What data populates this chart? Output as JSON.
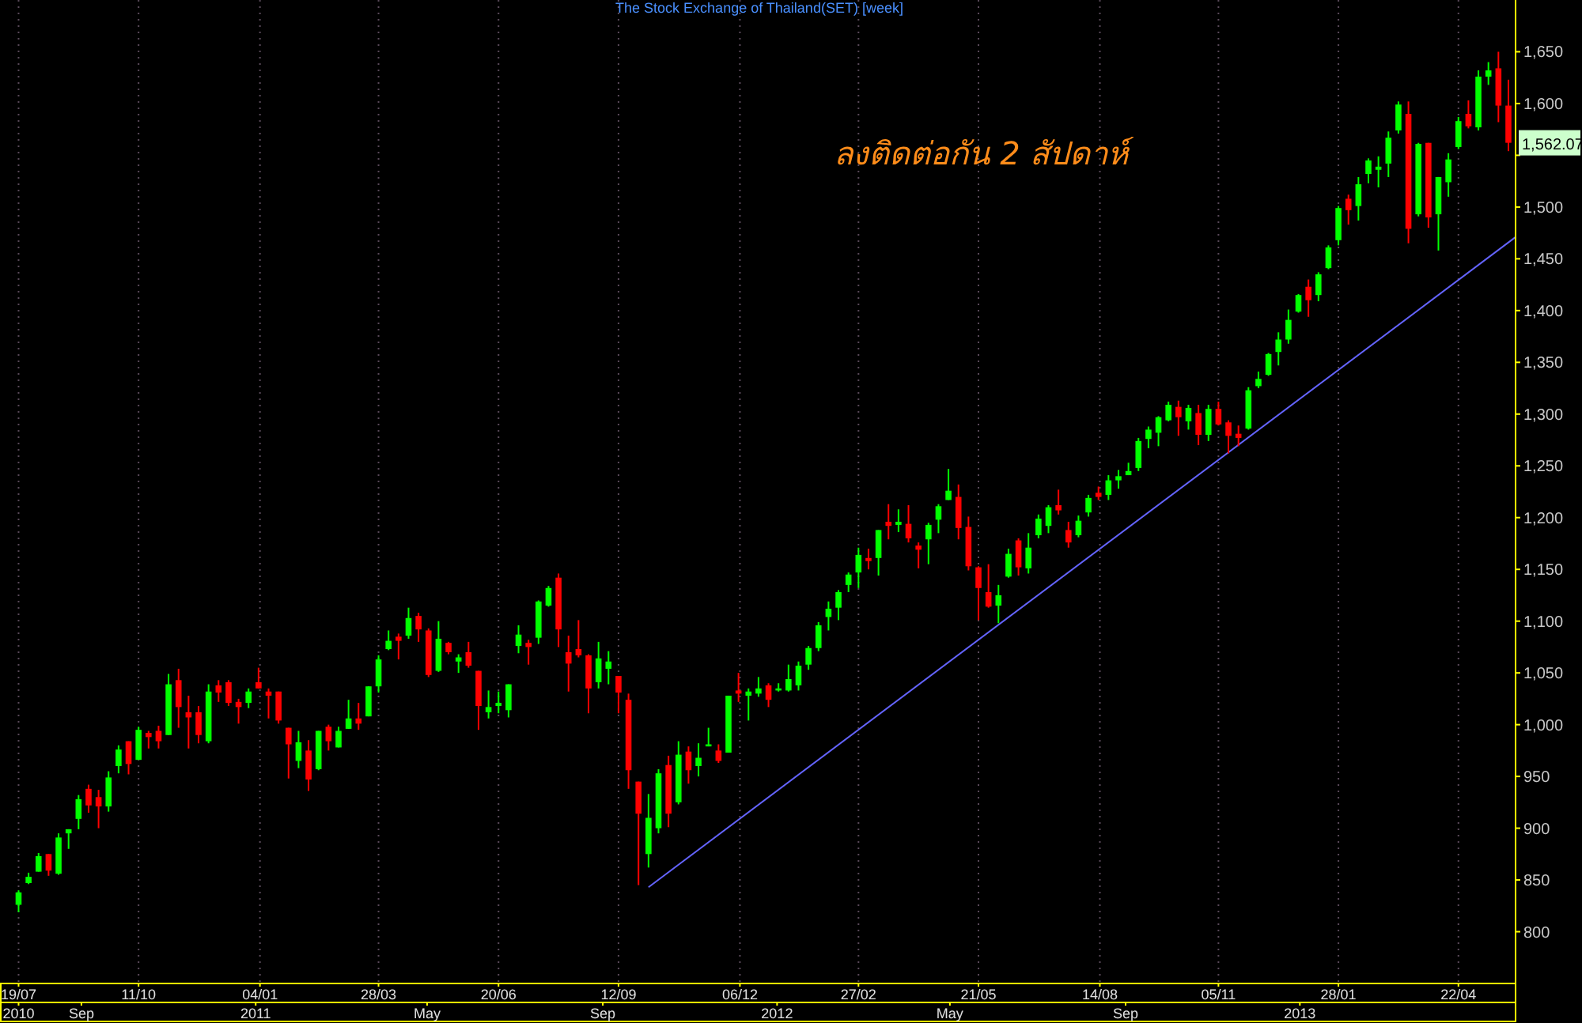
{
  "chart_data": {
    "type": "candlestick",
    "title": "The Stock Exchange of Thailand(SET) [week]",
    "x": [
      "2010-07-19",
      "2010-07-26",
      "2010-08-02",
      "2010-08-09",
      "2010-08-16",
      "2010-08-23",
      "2010-08-30",
      "2010-09-06",
      "2010-09-13",
      "2010-09-20",
      "2010-09-27",
      "2010-10-04",
      "2010-10-11",
      "2010-10-18",
      "2010-10-25",
      "2010-11-01",
      "2010-11-08",
      "2010-11-15",
      "2010-11-22",
      "2010-11-29",
      "2010-12-06",
      "2010-12-13",
      "2010-12-20",
      "2010-12-27",
      "2011-01-03",
      "2011-01-10",
      "2011-01-17",
      "2011-01-24",
      "2011-01-31",
      "2011-02-07",
      "2011-02-14",
      "2011-02-21",
      "2011-02-28",
      "2011-03-07",
      "2011-03-14",
      "2011-03-21",
      "2011-03-28",
      "2011-04-04",
      "2011-04-11",
      "2011-04-18",
      "2011-04-25",
      "2011-05-02",
      "2011-05-09",
      "2011-05-16",
      "2011-05-23",
      "2011-05-30",
      "2011-06-06",
      "2011-06-13",
      "2011-06-20",
      "2011-06-27",
      "2011-07-04",
      "2011-07-11",
      "2011-07-18",
      "2011-07-25",
      "2011-08-01",
      "2011-08-08",
      "2011-08-15",
      "2011-08-22",
      "2011-08-29",
      "2011-09-05",
      "2011-09-12",
      "2011-09-19",
      "2011-09-26",
      "2011-10-03",
      "2011-10-10",
      "2011-10-17",
      "2011-10-24",
      "2011-10-31",
      "2011-11-07",
      "2011-11-14",
      "2011-11-21",
      "2011-11-28",
      "2011-12-05",
      "2011-12-12",
      "2011-12-19",
      "2011-12-26",
      "2012-01-02",
      "2012-01-09",
      "2012-01-16",
      "2012-01-23",
      "2012-01-30",
      "2012-02-06",
      "2012-02-13",
      "2012-02-20",
      "2012-02-27",
      "2012-03-05",
      "2012-03-12",
      "2012-03-19",
      "2012-03-26",
      "2012-04-02",
      "2012-04-09",
      "2012-04-16",
      "2012-04-23",
      "2012-04-30",
      "2012-05-07",
      "2012-05-14",
      "2012-05-21",
      "2012-05-28",
      "2012-06-04",
      "2012-06-11",
      "2012-06-18",
      "2012-06-25",
      "2012-07-02",
      "2012-07-09",
      "2012-07-16",
      "2012-07-23",
      "2012-07-30",
      "2012-08-06",
      "2012-08-13",
      "2012-08-20",
      "2012-08-27",
      "2012-09-03",
      "2012-09-10",
      "2012-09-17",
      "2012-09-24",
      "2012-10-01",
      "2012-10-08",
      "2012-10-15",
      "2012-10-22",
      "2012-10-29",
      "2012-11-05",
      "2012-11-12",
      "2012-11-19",
      "2012-11-26",
      "2012-12-03",
      "2012-12-10",
      "2012-12-17",
      "2012-12-24",
      "2012-12-31",
      "2013-01-07",
      "2013-01-14",
      "2013-01-21",
      "2013-01-28",
      "2013-02-04",
      "2013-02-11",
      "2013-02-18",
      "2013-02-25",
      "2013-03-04",
      "2013-03-11",
      "2013-03-18",
      "2013-03-25",
      "2013-04-01",
      "2013-04-08",
      "2013-04-15",
      "2013-04-22",
      "2013-04-29",
      "2013-05-06",
      "2013-05-13",
      "2013-05-20",
      "2013-05-27"
    ],
    "ohlc": [
      [
        826,
        840,
        819,
        838
      ],
      [
        847,
        857,
        846,
        853
      ],
      [
        858,
        876,
        858,
        873
      ],
      [
        875,
        875,
        854,
        859
      ],
      [
        856,
        895,
        855,
        891
      ],
      [
        895,
        899,
        880,
        899
      ],
      [
        909,
        932,
        899,
        928
      ],
      [
        938,
        942,
        915,
        922
      ],
      [
        930,
        937,
        900,
        921
      ],
      [
        921,
        955,
        916,
        949
      ],
      [
        960,
        980,
        953,
        976
      ],
      [
        984,
        984,
        952,
        962
      ],
      [
        966,
        998,
        966,
        995
      ],
      [
        992,
        994,
        977,
        988
      ],
      [
        994,
        999,
        977,
        984
      ],
      [
        990,
        1049,
        990,
        1039
      ],
      [
        1043,
        1054,
        997,
        1017
      ],
      [
        1012,
        1028,
        977,
        1007
      ],
      [
        1012,
        1018,
        982,
        990
      ],
      [
        984,
        1039,
        982,
        1032
      ],
      [
        1038,
        1043,
        1022,
        1031
      ],
      [
        1041,
        1043,
        1018,
        1021
      ],
      [
        1022,
        1025,
        1001,
        1017
      ],
      [
        1021,
        1035,
        1016,
        1032
      ],
      [
        1041,
        1055,
        1035,
        1035
      ],
      [
        1032,
        1035,
        1006,
        1028
      ],
      [
        1032,
        1032,
        1001,
        1004
      ],
      [
        997,
        997,
        948,
        981
      ],
      [
        965,
        994,
        958,
        983
      ],
      [
        975,
        985,
        936,
        947
      ],
      [
        957,
        994,
        956,
        994
      ],
      [
        998,
        1000,
        975,
        984
      ],
      [
        978,
        998,
        978,
        994
      ],
      [
        996,
        1024,
        996,
        1006
      ],
      [
        1006,
        1021,
        995,
        1001
      ],
      [
        1008,
        1037,
        1008,
        1037
      ],
      [
        1037,
        1067,
        1031,
        1063
      ],
      [
        1073,
        1091,
        1072,
        1081
      ],
      [
        1085,
        1088,
        1063,
        1081
      ],
      [
        1086,
        1113,
        1083,
        1103
      ],
      [
        1105,
        1108,
        1080,
        1092
      ],
      [
        1091,
        1093,
        1046,
        1048
      ],
      [
        1052,
        1100,
        1051,
        1083
      ],
      [
        1079,
        1080,
        1068,
        1070
      ],
      [
        1061,
        1068,
        1050,
        1065
      ],
      [
        1070,
        1080,
        1055,
        1057
      ],
      [
        1052,
        1052,
        995,
        1018
      ],
      [
        1012,
        1033,
        1006,
        1017
      ],
      [
        1018,
        1032,
        1011,
        1021
      ],
      [
        1014,
        1039,
        1007,
        1039
      ],
      [
        1076,
        1096,
        1069,
        1087
      ],
      [
        1079,
        1082,
        1058,
        1075
      ],
      [
        1084,
        1120,
        1078,
        1119
      ],
      [
        1115,
        1134,
        1114,
        1132
      ],
      [
        1142,
        1146,
        1075,
        1092
      ],
      [
        1070,
        1086,
        1032,
        1059
      ],
      [
        1073,
        1101,
        1065,
        1067
      ],
      [
        1067,
        1068,
        1011,
        1035
      ],
      [
        1041,
        1080,
        1035,
        1064
      ],
      [
        1054,
        1071,
        1039,
        1061
      ],
      [
        1047,
        1047,
        1011,
        1031
      ],
      [
        1024,
        1030,
        938,
        956
      ],
      [
        945,
        945,
        845,
        914
      ],
      [
        875,
        933,
        862,
        910
      ],
      [
        900,
        957,
        895,
        953
      ],
      [
        961,
        970,
        901,
        914
      ],
      [
        925,
        984,
        923,
        971
      ],
      [
        974,
        979,
        943,
        956
      ],
      [
        960,
        982,
        950,
        968
      ],
      [
        979,
        997,
        979,
        981
      ],
      [
        975,
        981,
        963,
        965
      ],
      [
        973,
        1028,
        973,
        1028
      ],
      [
        1033,
        1050,
        1022,
        1030
      ],
      [
        1028,
        1035,
        1004,
        1032
      ],
      [
        1030,
        1046,
        1027,
        1035
      ],
      [
        1038,
        1040,
        1017,
        1024
      ],
      [
        1033,
        1040,
        1032,
        1035
      ],
      [
        1033,
        1058,
        1032,
        1044
      ],
      [
        1038,
        1061,
        1033,
        1057
      ],
      [
        1058,
        1076,
        1053,
        1074
      ],
      [
        1074,
        1099,
        1071,
        1096
      ],
      [
        1104,
        1119,
        1091,
        1112
      ],
      [
        1113,
        1130,
        1101,
        1128
      ],
      [
        1135,
        1147,
        1128,
        1145
      ],
      [
        1147,
        1171,
        1132,
        1164
      ],
      [
        1161,
        1170,
        1150,
        1158
      ],
      [
        1161,
        1188,
        1144,
        1188
      ],
      [
        1196,
        1213,
        1179,
        1192
      ],
      [
        1193,
        1208,
        1186,
        1196
      ],
      [
        1194,
        1212,
        1176,
        1180
      ],
      [
        1173,
        1176,
        1151,
        1169
      ],
      [
        1179,
        1195,
        1155,
        1193
      ],
      [
        1198,
        1213,
        1185,
        1211
      ],
      [
        1217,
        1247,
        1217,
        1226
      ],
      [
        1220,
        1232,
        1179,
        1190
      ],
      [
        1191,
        1201,
        1149,
        1153
      ],
      [
        1152,
        1153,
        1101,
        1132
      ],
      [
        1128,
        1155,
        1113,
        1114
      ],
      [
        1115,
        1135,
        1098,
        1125
      ],
      [
        1143,
        1170,
        1142,
        1165
      ],
      [
        1178,
        1180,
        1144,
        1152
      ],
      [
        1151,
        1185,
        1146,
        1171
      ],
      [
        1183,
        1203,
        1180,
        1199
      ],
      [
        1192,
        1212,
        1185,
        1210
      ],
      [
        1212,
        1227,
        1203,
        1207
      ],
      [
        1188,
        1196,
        1171,
        1176
      ],
      [
        1183,
        1202,
        1181,
        1197
      ],
      [
        1205,
        1222,
        1201,
        1219
      ],
      [
        1224,
        1230,
        1217,
        1220
      ],
      [
        1222,
        1241,
        1217,
        1236
      ],
      [
        1236,
        1246,
        1228,
        1240
      ],
      [
        1241,
        1253,
        1241,
        1245
      ],
      [
        1248,
        1277,
        1245,
        1274
      ],
      [
        1276,
        1288,
        1267,
        1285
      ],
      [
        1282,
        1298,
        1269,
        1297
      ],
      [
        1294,
        1312,
        1293,
        1309
      ],
      [
        1307,
        1313,
        1279,
        1297
      ],
      [
        1293,
        1309,
        1285,
        1306
      ],
      [
        1301,
        1309,
        1270,
        1280
      ],
      [
        1280,
        1309,
        1274,
        1305
      ],
      [
        1305,
        1312,
        1289,
        1290
      ],
      [
        1292,
        1294,
        1262,
        1279
      ],
      [
        1281,
        1289,
        1269,
        1277
      ],
      [
        1286,
        1326,
        1285,
        1323
      ],
      [
        1327,
        1341,
        1325,
        1334
      ],
      [
        1338,
        1359,
        1337,
        1358
      ],
      [
        1360,
        1379,
        1347,
        1372
      ],
      [
        1372,
        1401,
        1368,
        1391
      ],
      [
        1399,
        1416,
        1398,
        1415
      ],
      [
        1423,
        1430,
        1394,
        1410
      ],
      [
        1415,
        1437,
        1409,
        1435
      ],
      [
        1441,
        1463,
        1440,
        1461
      ],
      [
        1468,
        1501,
        1463,
        1499
      ],
      [
        1508,
        1512,
        1483,
        1497
      ],
      [
        1501,
        1529,
        1487,
        1522
      ],
      [
        1532,
        1547,
        1523,
        1545
      ],
      [
        1536,
        1549,
        1519,
        1539
      ],
      [
        1542,
        1573,
        1529,
        1567
      ],
      [
        1574,
        1602,
        1571,
        1599
      ],
      [
        1590,
        1602,
        1465,
        1479
      ],
      [
        1493,
        1562,
        1491,
        1561
      ],
      [
        1562,
        1562,
        1480,
        1490
      ],
      [
        1493,
        1529,
        1458,
        1529
      ],
      [
        1524,
        1552,
        1510,
        1546
      ],
      [
        1558,
        1587,
        1556,
        1583
      ],
      [
        1590,
        1603,
        1576,
        1578
      ],
      [
        1577,
        1632,
        1574,
        1626
      ],
      [
        1626,
        1640,
        1618,
        1632
      ],
      [
        1634,
        1650,
        1582,
        1598
      ],
      [
        1598,
        1623,
        1554,
        1562.07
      ]
    ],
    "colors": [
      "#00ff00",
      "#00ff00",
      "#00ff00",
      "#ff0000",
      "#00ff00",
      "#00ff00",
      "#00ff00",
      "#ff0000",
      "#ff0000",
      "#00ff00",
      "#00ff00",
      "#ff0000",
      "#00ff00",
      "#ff0000",
      "#ff0000",
      "#00ff00",
      "#ff0000",
      "#ff0000",
      "#ff0000",
      "#00ff00",
      "#ff0000",
      "#ff0000",
      "#ff0000",
      "#00ff00",
      "#ff0000",
      "#ff0000",
      "#ff0000",
      "#ff0000",
      "#00ff00",
      "#ff0000",
      "#00ff00",
      "#ff0000",
      "#00ff00",
      "#00ff00",
      "#ff0000",
      "#00ff00",
      "#00ff00",
      "#00ff00",
      "#ff0000",
      "#00ff00",
      "#ff0000",
      "#ff0000",
      "#00ff00",
      "#ff0000",
      "#00ff00",
      "#ff0000",
      "#ff0000",
      "#00ff00",
      "#00ff00",
      "#00ff00",
      "#00ff00",
      "#ff0000",
      "#00ff00",
      "#00ff00",
      "#ff0000",
      "#ff0000",
      "#ff0000",
      "#ff0000",
      "#00ff00",
      "#00ff00",
      "#ff0000",
      "#ff0000",
      "#ff0000",
      "#00ff00",
      "#00ff00",
      "#ff0000",
      "#00ff00",
      "#ff0000",
      "#00ff00",
      "#00ff00",
      "#ff0000",
      "#00ff00",
      "#ff0000",
      "#00ff00",
      "#00ff00",
      "#ff0000",
      "#00ff00",
      "#00ff00",
      "#00ff00",
      "#00ff00",
      "#00ff00",
      "#00ff00",
      "#00ff00",
      "#00ff00",
      "#00ff00",
      "#ff0000",
      "#00ff00",
      "#ff0000",
      "#00ff00",
      "#ff0000",
      "#ff0000",
      "#00ff00",
      "#00ff00",
      "#00ff00",
      "#ff0000",
      "#ff0000",
      "#ff0000",
      "#ff0000",
      "#00ff00",
      "#00ff00",
      "#ff0000",
      "#00ff00",
      "#00ff00",
      "#00ff00",
      "#ff0000",
      "#ff0000",
      "#00ff00",
      "#00ff00",
      "#ff0000",
      "#00ff00",
      "#00ff00",
      "#00ff00",
      "#00ff00",
      "#00ff00",
      "#00ff00",
      "#00ff00",
      "#ff0000",
      "#00ff00",
      "#ff0000",
      "#00ff00",
      "#ff0000",
      "#ff0000",
      "#ff0000",
      "#00ff00",
      "#00ff00",
      "#00ff00",
      "#00ff00",
      "#00ff00",
      "#00ff00",
      "#ff0000",
      "#00ff00",
      "#00ff00",
      "#00ff00",
      "#ff0000",
      "#00ff00",
      "#00ff00",
      "#00ff00",
      "#00ff00",
      "#00ff00",
      "#ff0000",
      "#00ff00",
      "#ff0000",
      "#00ff00",
      "#00ff00",
      "#00ff00",
      "#ff0000",
      "#00ff00",
      "#00ff00",
      "#ff0000",
      "#ff0000"
    ],
    "series": [
      {
        "type": "line",
        "x": [
          "2011-10-03",
          "2013-06-01"
        ],
        "values": [
          843,
          1471
        ],
        "color": "#6464ff"
      }
    ],
    "xlim": [
      "2010-07-06",
      "2013-06-01"
    ],
    "xticks": [
      {
        "value": "2010-07-19",
        "label": "19/07"
      },
      {
        "value": "2010-10-11",
        "label": "11/10"
      },
      {
        "value": "2011-01-04",
        "label": "04/01"
      },
      {
        "value": "2011-03-28",
        "label": "28/03"
      },
      {
        "value": "2011-06-20",
        "label": "20/06"
      },
      {
        "value": "2011-09-12",
        "label": "12/09"
      },
      {
        "value": "2011-12-06",
        "label": "06/12"
      },
      {
        "value": "2012-02-27",
        "label": "27/02"
      },
      {
        "value": "2012-05-21",
        "label": "21/05"
      },
      {
        "value": "2012-08-14",
        "label": "14/08"
      },
      {
        "value": "2012-11-05",
        "label": "05/11"
      },
      {
        "value": "2013-01-28",
        "label": "28/01"
      },
      {
        "value": "2013-04-22",
        "label": "22/04"
      }
    ],
    "x2lim": [
      "2010-07-06",
      "2013-06-01"
    ],
    "x2ticks": [
      {
        "value": "2010-07-19",
        "label": "2010"
      },
      {
        "value": "2010-09-01",
        "label": "Sep"
      },
      {
        "value": "2011-01-01",
        "label": "2011"
      },
      {
        "value": "2011-05-01",
        "label": "May"
      },
      {
        "value": "2011-09-01",
        "label": "Sep"
      },
      {
        "value": "2012-01-01",
        "label": "2012"
      },
      {
        "value": "2012-05-01",
        "label": "May"
      },
      {
        "value": "2012-09-01",
        "label": "Sep"
      },
      {
        "value": "2013-01-01",
        "label": "2013"
      }
    ],
    "ylim": [
      750,
      1700
    ],
    "yticks": [
      800,
      850,
      900,
      950,
      {
        "value": 1000,
        "label": "1,000"
      },
      {
        "value": 1050,
        "label": "1,050"
      },
      {
        "value": 1100,
        "label": "1,100"
      },
      {
        "value": 1150,
        "label": "1,150"
      },
      {
        "value": 1200,
        "label": "1,200"
      },
      {
        "value": 1250,
        "label": "1,250"
      },
      {
        "value": 1300,
        "label": "1,300"
      },
      {
        "value": 1350,
        "label": "1,350"
      },
      {
        "value": 1400,
        "label": "1,400"
      },
      {
        "value": 1450,
        "label": "1,450"
      },
      {
        "value": 1500,
        "label": "1,500"
      },
      {
        "value": 1550,
        "label": null
      },
      {
        "value": 1600,
        "label": "1,600"
      },
      {
        "value": 1650,
        "label": "1,650"
      }
    ],
    "grid": "x",
    "annotations": [
      "ลงติดต่อกัน 2 สัปดาห์",
      "1,562.07"
    ]
  }
}
